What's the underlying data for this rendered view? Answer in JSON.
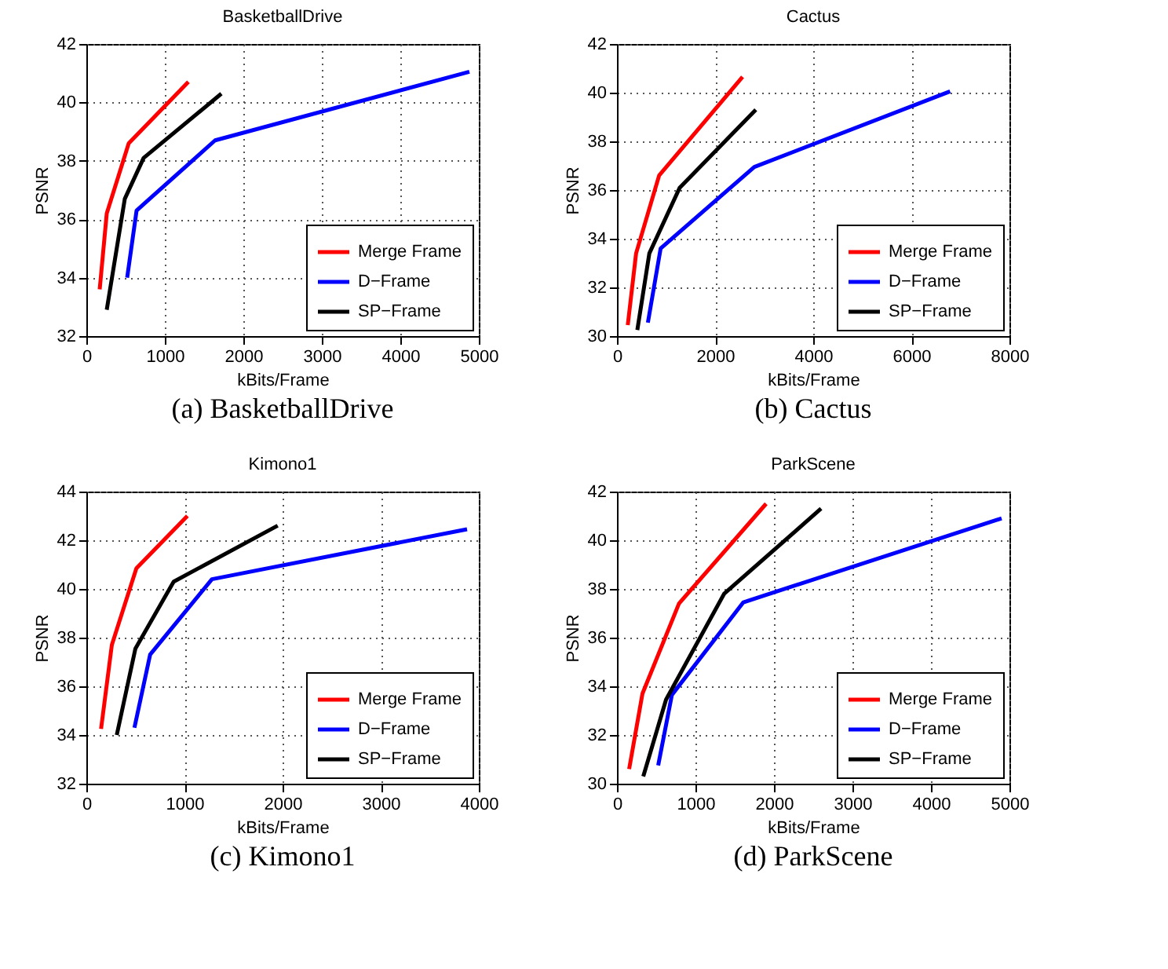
{
  "chart_data": [
    {
      "type": "line",
      "title": "BasketballDrive",
      "xlabel": "kBits/Frame",
      "ylabel": "PSNR",
      "annotations": [
        "(a) BasketballDrive"
      ],
      "xlim": [
        0,
        5000
      ],
      "ylim": [
        32,
        42
      ],
      "xticks": [
        0,
        1000,
        2000,
        3000,
        4000,
        5000
      ],
      "yticks": [
        32,
        34,
        36,
        38,
        40,
        42
      ],
      "grid": true,
      "legend": "bottom right",
      "series": [
        {
          "name": "Merge Frame",
          "color": "#ff0000",
          "x": [
            170,
            260,
            540,
            1300
          ],
          "values": [
            33.6,
            36.2,
            38.6,
            40.7
          ]
        },
        {
          "name": "D−Frame",
          "color": "#0000ff",
          "x": [
            520,
            640,
            1640,
            4880
          ],
          "values": [
            34,
            36.3,
            38.7,
            41.05
          ]
        },
        {
          "name": "SP−Frame",
          "color": "#000000",
          "x": [
            260,
            490,
            730,
            1720
          ],
          "values": [
            32.9,
            36.7,
            38.1,
            40.3
          ]
        }
      ]
    },
    {
      "type": "line",
      "title": "Cactus",
      "xlabel": "kBits/Frame",
      "ylabel": "PSNR",
      "annotations": [
        "(b) Cactus"
      ],
      "xlim": [
        0,
        8000
      ],
      "ylim": [
        30,
        42
      ],
      "xticks": [
        0,
        2000,
        4000,
        6000,
        8000
      ],
      "yticks": [
        30,
        32,
        34,
        36,
        38,
        40,
        42
      ],
      "grid": true,
      "legend": "bottom right",
      "series": [
        {
          "name": "Merge Frame",
          "color": "#ff0000",
          "x": [
            220,
            390,
            860,
            2560
          ],
          "values": [
            30.45,
            33.4,
            36.6,
            40.65
          ]
        },
        {
          "name": "D−Frame",
          "color": "#0000ff",
          "x": [
            630,
            890,
            2800,
            6790
          ],
          "values": [
            30.55,
            33.6,
            36.95,
            40.05
          ]
        },
        {
          "name": "SP−Frame",
          "color": "#000000",
          "x": [
            415,
            660,
            1280,
            2830
          ],
          "values": [
            30.25,
            33.4,
            36.1,
            39.3
          ]
        }
      ]
    },
    {
      "type": "line",
      "title": "Kimono1",
      "xlabel": "kBits/Frame",
      "ylabel": "PSNR",
      "annotations": [
        "(c) Kimono1"
      ],
      "xlim": [
        0,
        4000
      ],
      "ylim": [
        32,
        44
      ],
      "xticks": [
        0,
        1000,
        2000,
        3000,
        4000
      ],
      "yticks": [
        32,
        34,
        36,
        38,
        40,
        42,
        44
      ],
      "grid": true,
      "legend": "bottom right",
      "series": [
        {
          "name": "Merge Frame",
          "color": "#ff0000",
          "x": [
            150,
            260,
            510,
            1030
          ],
          "values": [
            34.25,
            37.7,
            40.85,
            43
          ]
        },
        {
          "name": "D−Frame",
          "color": "#0000ff",
          "x": [
            490,
            650,
            1280,
            3880
          ],
          "values": [
            34.3,
            37.3,
            40.4,
            42.45
          ]
        },
        {
          "name": "SP−Frame",
          "color": "#000000",
          "x": [
            310,
            500,
            890,
            1950
          ],
          "values": [
            34,
            37.55,
            40.3,
            42.6
          ]
        }
      ]
    },
    {
      "type": "line",
      "title": "ParkScene",
      "xlabel": "kBits/Frame",
      "ylabel": "PSNR",
      "annotations": [
        "(d) ParkScene"
      ],
      "xlim": [
        0,
        5000
      ],
      "ylim": [
        30,
        42
      ],
      "xticks": [
        0,
        1000,
        2000,
        3000,
        4000,
        5000
      ],
      "yticks": [
        30,
        32,
        34,
        36,
        38,
        40,
        42
      ],
      "grid": true,
      "legend": "bottom right",
      "series": [
        {
          "name": "Merge Frame",
          "color": "#ff0000",
          "x": [
            155,
            325,
            790,
            1900
          ],
          "values": [
            30.6,
            33.7,
            37.4,
            41.5
          ]
        },
        {
          "name": "D−Frame",
          "color": "#0000ff",
          "x": [
            525,
            700,
            1610,
            4900
          ],
          "values": [
            30.75,
            33.65,
            37.45,
            40.9
          ]
        },
        {
          "name": "SP−Frame",
          "color": "#000000",
          "x": [
            335,
            625,
            1365,
            2600
          ],
          "values": [
            30.3,
            33.45,
            37.8,
            41.3
          ]
        }
      ]
    }
  ]
}
